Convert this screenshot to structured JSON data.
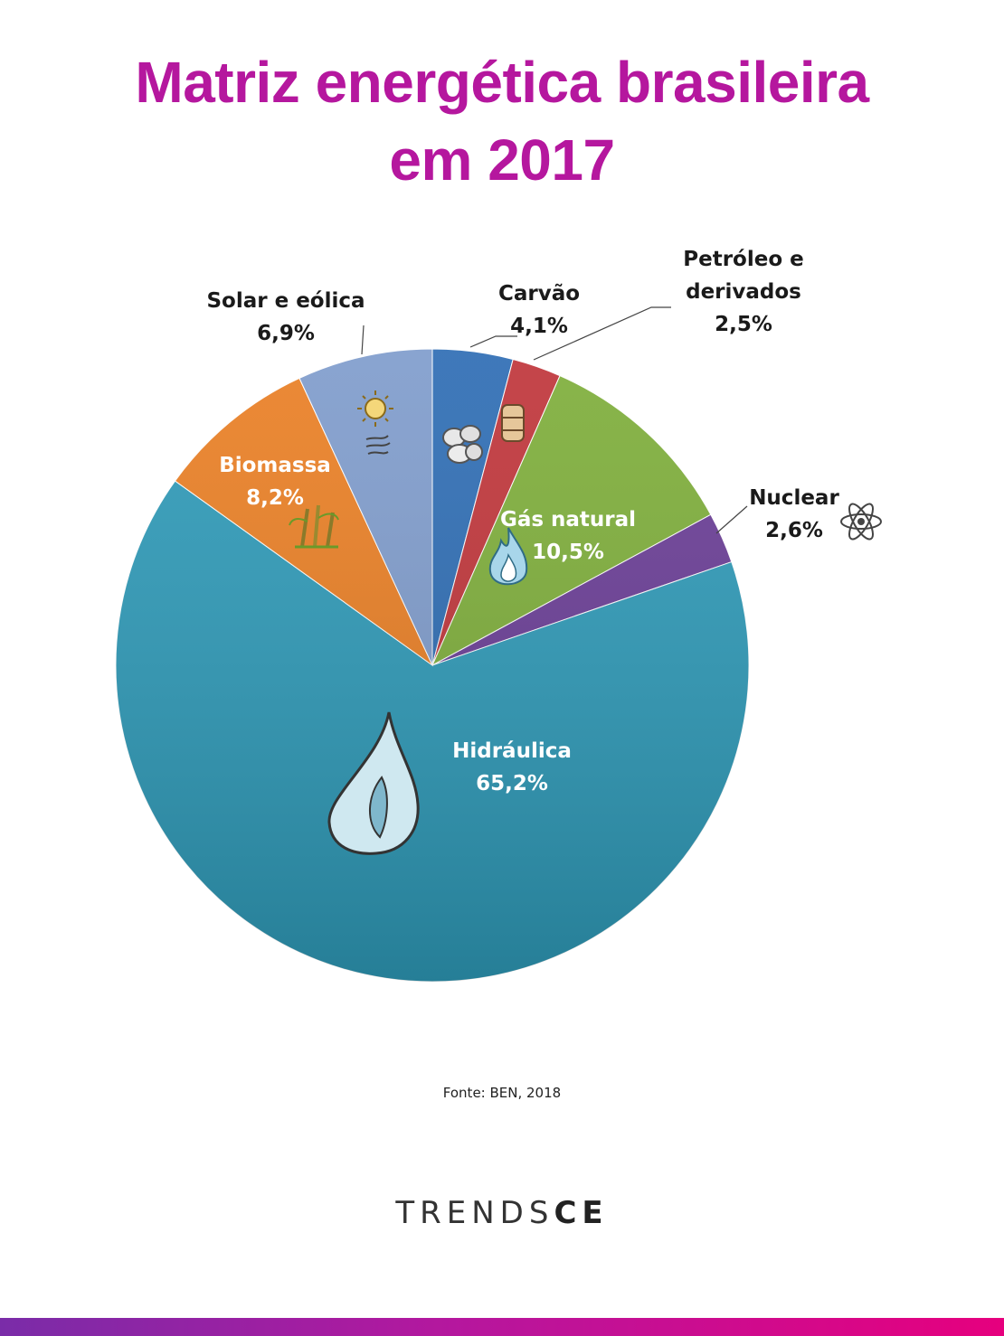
{
  "title": {
    "line1": "Matriz energética brasileira",
    "line2": "em 2017"
  },
  "source": "Fonte: BEN, 2018",
  "brand": {
    "thin": "TRENDS",
    "bold": "CE"
  },
  "colors": {
    "title": "#b5179e",
    "Carvão": "#2e6db4",
    "Petróleo e derivados": "#c0353a",
    "Gás natural": "#7eae3a",
    "Nuclear": "#6a3d96",
    "Hidráulica": "#2e9ab8",
    "Biomassa": "#ea7f24",
    "Solar e eólica": "#7f9ccc"
  },
  "chart_data": {
    "type": "pie",
    "start": "12 o'clock, clockwise",
    "slices": [
      {
        "name": "Carvão",
        "value": 4.1,
        "label": "4,1%",
        "icon": "coal-icon"
      },
      {
        "name": "Petróleo e derivados",
        "value": 2.5,
        "label": "2,5%",
        "icon": "oil-barrel-icon"
      },
      {
        "name": "Gás natural",
        "value": 10.5,
        "label": "10,5%",
        "icon": "flame-icon"
      },
      {
        "name": "Nuclear",
        "value": 2.6,
        "label": "2,6%",
        "icon": "atom-icon"
      },
      {
        "name": "Hidráulica",
        "value": 65.2,
        "label": "65,2%",
        "icon": "water-drop-icon"
      },
      {
        "name": "Biomassa",
        "value": 8.2,
        "label": "8,2%",
        "icon": "sugarcane-icon"
      },
      {
        "name": "Solar e eólica",
        "value": 6.9,
        "label": "6,9%",
        "icon": "sun-wind-icon"
      }
    ],
    "labels": {
      "Carvão": [
        "Carvão"
      ],
      "Petróleo e derivados": [
        "Petróleo e",
        "derivados"
      ],
      "Gás natural": [
        "Gás natural"
      ],
      "Nuclear": [
        "Nuclear"
      ],
      "Hidráulica": [
        "Hidráulica"
      ],
      "Biomassa": [
        "Biomassa"
      ],
      "Solar e eólica": [
        "Solar e eólica"
      ]
    }
  }
}
